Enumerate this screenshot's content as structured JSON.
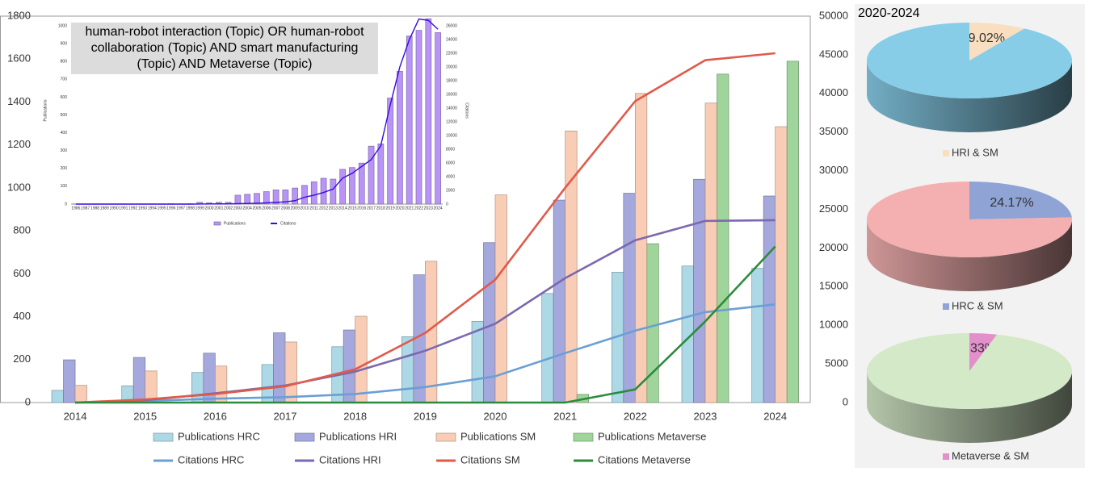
{
  "panel": {
    "title": "2020-2024"
  },
  "chart_data": [
    {
      "type": "bar",
      "categories": [
        "2014",
        "2015",
        "2016",
        "2017",
        "2018",
        "2019",
        "2020",
        "2021",
        "2022",
        "2023",
        "2024"
      ],
      "ylim": [
        0,
        1800
      ],
      "yticks": [
        0,
        200,
        400,
        600,
        800,
        1000,
        1200,
        1400,
        1600,
        1800
      ],
      "y2lim": [
        0,
        50000
      ],
      "y2ticks": [
        0,
        5000,
        10000,
        15000,
        20000,
        25000,
        30000,
        35000,
        40000,
        45000,
        50000
      ],
      "grid": false,
      "legend": "bottom",
      "series": [
        {
          "name": "Publications HRC",
          "type": "bar",
          "color": "#add8e6",
          "values": [
            57,
            78,
            140,
            177,
            260,
            307,
            378,
            508,
            607,
            636,
            625
          ]
        },
        {
          "name": "Publications HRI",
          "type": "bar",
          "color": "#a4a8dc",
          "values": [
            199,
            210,
            230,
            325,
            338,
            595,
            745,
            943,
            975,
            1040,
            962
          ]
        },
        {
          "name": "Publications SM",
          "type": "bar",
          "color": "#f9cdb5",
          "values": [
            80,
            147,
            170,
            282,
            402,
            658,
            967,
            1265,
            1440,
            1395,
            1285
          ]
        },
        {
          "name": "Publications Metaverse",
          "type": "bar",
          "color": "#9fd49b",
          "values": [
            0,
            0,
            0,
            0,
            0,
            0,
            0,
            38,
            740,
            1530,
            1590
          ]
        },
        {
          "name": "Citations HRC",
          "type": "line",
          "axis": "y2",
          "color": "#6b9fd4",
          "values": [
            0,
            200,
            500,
            700,
            1100,
            2000,
            3400,
            6400,
            9300,
            11700,
            12700
          ]
        },
        {
          "name": "Citations HRI",
          "type": "line",
          "axis": "y2",
          "color": "#7b68b0",
          "values": [
            0,
            300,
            1200,
            2200,
            4000,
            6700,
            10200,
            16100,
            21000,
            23500,
            23600
          ]
        },
        {
          "name": "Citations SM",
          "type": "line",
          "axis": "y2",
          "color": "#e05a4a",
          "values": [
            0,
            400,
            1100,
            2100,
            4300,
            9000,
            15900,
            27800,
            39000,
            44300,
            45200
          ]
        },
        {
          "name": "Citations Metaverse",
          "type": "line",
          "axis": "y2",
          "color": "#2e8b3e",
          "values": [
            0,
            0,
            0,
            0,
            0,
            0,
            0,
            0,
            1700,
            10500,
            20200
          ]
        }
      ]
    },
    {
      "type": "bar",
      "title": "human-robot interaction (Topic) OR human-robot collaboration (Topic) AND smart manufacturing (Topic) AND Metaverse (Topic)",
      "ylabel": "Publications",
      "y2label": "Citations",
      "categories": [
        "1986",
        "1987",
        "1988",
        "1989",
        "1990",
        "1991",
        "1992",
        "1993",
        "1994",
        "1995",
        "1996",
        "1997",
        "1998",
        "1999",
        "2000",
        "2001",
        "2002",
        "2003",
        "2004",
        "2005",
        "2006",
        "2007",
        "2008",
        "2009",
        "2010",
        "2011",
        "2012",
        "2013",
        "2014",
        "2015",
        "2016",
        "2017",
        "2018",
        "2019",
        "2020",
        "2021",
        "2022",
        "2023",
        "2024"
      ],
      "ylim": [
        0,
        1050
      ],
      "yticks": [
        0,
        100,
        200,
        300,
        400,
        500,
        600,
        700,
        800,
        900,
        1000
      ],
      "y2lim": [
        0,
        27300
      ],
      "y2ticks": [
        0,
        2000,
        4000,
        6000,
        8000,
        10000,
        12000,
        14000,
        16000,
        18000,
        20000,
        22000,
        24000,
        26000
      ],
      "grid": false,
      "legend": "bottom",
      "series": [
        {
          "name": "Publications",
          "type": "bar",
          "color": "#b794f6",
          "values": [
            1,
            0,
            1,
            0,
            1,
            1,
            0,
            1,
            1,
            1,
            2,
            1,
            2,
            10,
            7,
            10,
            10,
            50,
            55,
            60,
            70,
            80,
            80,
            90,
            105,
            125,
            145,
            140,
            195,
            205,
            230,
            325,
            338,
            595,
            745,
            943,
            975,
            1040,
            962
          ]
        },
        {
          "name": "Citations",
          "type": "line",
          "axis": "y2",
          "color": "#3a0ad8",
          "values": [
            0,
            0,
            0,
            0,
            0,
            0,
            0,
            0,
            0,
            0,
            0,
            0,
            0,
            10,
            20,
            30,
            40,
            60,
            90,
            120,
            180,
            250,
            330,
            500,
            1000,
            1300,
            1700,
            2200,
            3800,
            4500,
            5500,
            6500,
            8500,
            14500,
            20000,
            24000,
            27000,
            26800,
            25500
          ]
        }
      ]
    },
    {
      "type": "pie",
      "categories": [
        "HRI & SM",
        null
      ],
      "values": [
        9.02,
        90.98
      ],
      "value_labels": [
        "9.02%",
        null
      ],
      "colors": [
        "#f9dfc0",
        "#87cde8"
      ]
    },
    {
      "type": "pie",
      "categories": [
        "HRC & SM",
        null
      ],
      "values": [
        24.17,
        75.83
      ],
      "value_labels": [
        "24.17%",
        null
      ],
      "colors": [
        "#8fa3d4",
        "#f4b0b0"
      ]
    },
    {
      "type": "pie",
      "categories": [
        "Metaverse & SM",
        null
      ],
      "values": [
        4.33,
        95.67
      ],
      "value_labels": [
        "4.33%",
        null
      ],
      "colors": [
        "#e28fcc",
        "#d4e9c8"
      ]
    }
  ]
}
